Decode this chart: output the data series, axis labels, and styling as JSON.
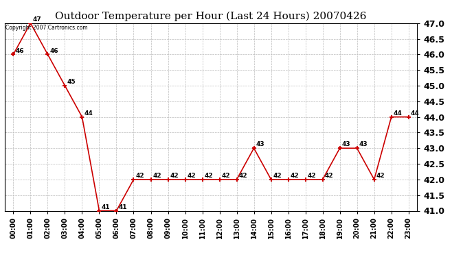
{
  "title": "Outdoor Temperature per Hour (Last 24 Hours) 20070426",
  "copyright_text": "Copyright 2007 Cartronics.com",
  "hours": [
    "00:00",
    "01:00",
    "02:00",
    "03:00",
    "04:00",
    "05:00",
    "06:00",
    "07:00",
    "08:00",
    "09:00",
    "10:00",
    "11:00",
    "12:00",
    "13:00",
    "14:00",
    "15:00",
    "16:00",
    "17:00",
    "18:00",
    "19:00",
    "20:00",
    "21:00",
    "22:00",
    "23:00"
  ],
  "temps": [
    46,
    47,
    46,
    45,
    44,
    41,
    41,
    42,
    42,
    42,
    42,
    42,
    42,
    42,
    43,
    42,
    42,
    42,
    42,
    43,
    43,
    42,
    44,
    44
  ],
  "line_color": "#cc0000",
  "marker_color": "#cc0000",
  "bg_color": "#ffffff",
  "grid_color": "#bbbbbb",
  "ylim_min": 41.0,
  "ylim_max": 47.0,
  "ytick_step": 0.5,
  "title_fontsize": 11,
  "xlabel_fontsize": 7,
  "ylabel_fontsize": 9,
  "point_label_fontsize": 6.5
}
